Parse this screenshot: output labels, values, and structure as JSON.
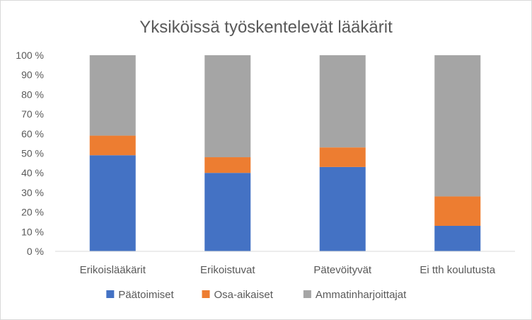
{
  "chart_data": {
    "type": "bar",
    "stacked": true,
    "percent_stacked": true,
    "title": "Yksiköissä työskentelevät lääkärit",
    "categories": [
      "Erikoislääkärit",
      "Erikoistuvat",
      "Pätevöityvät",
      "Ei tth koulutusta"
    ],
    "series": [
      {
        "name": "Päätoimiset",
        "values": [
          49,
          40,
          43,
          13
        ],
        "color": "#4472C4"
      },
      {
        "name": "Osa-aikaiset",
        "values": [
          10,
          8,
          10,
          15
        ],
        "color": "#ED7D31"
      },
      {
        "name": "Ammatinharjoittajat",
        "values": [
          41,
          52,
          47,
          72
        ],
        "color": "#A5A5A5"
      }
    ],
    "ylim": [
      0,
      100
    ],
    "y_ticks": [
      "0 %",
      "10 %",
      "20 %",
      "30 %",
      "40 %",
      "50 %",
      "60 %",
      "70 %",
      "80 %",
      "90 %",
      "100 %"
    ],
    "grid": false,
    "legend_position": "bottom"
  }
}
